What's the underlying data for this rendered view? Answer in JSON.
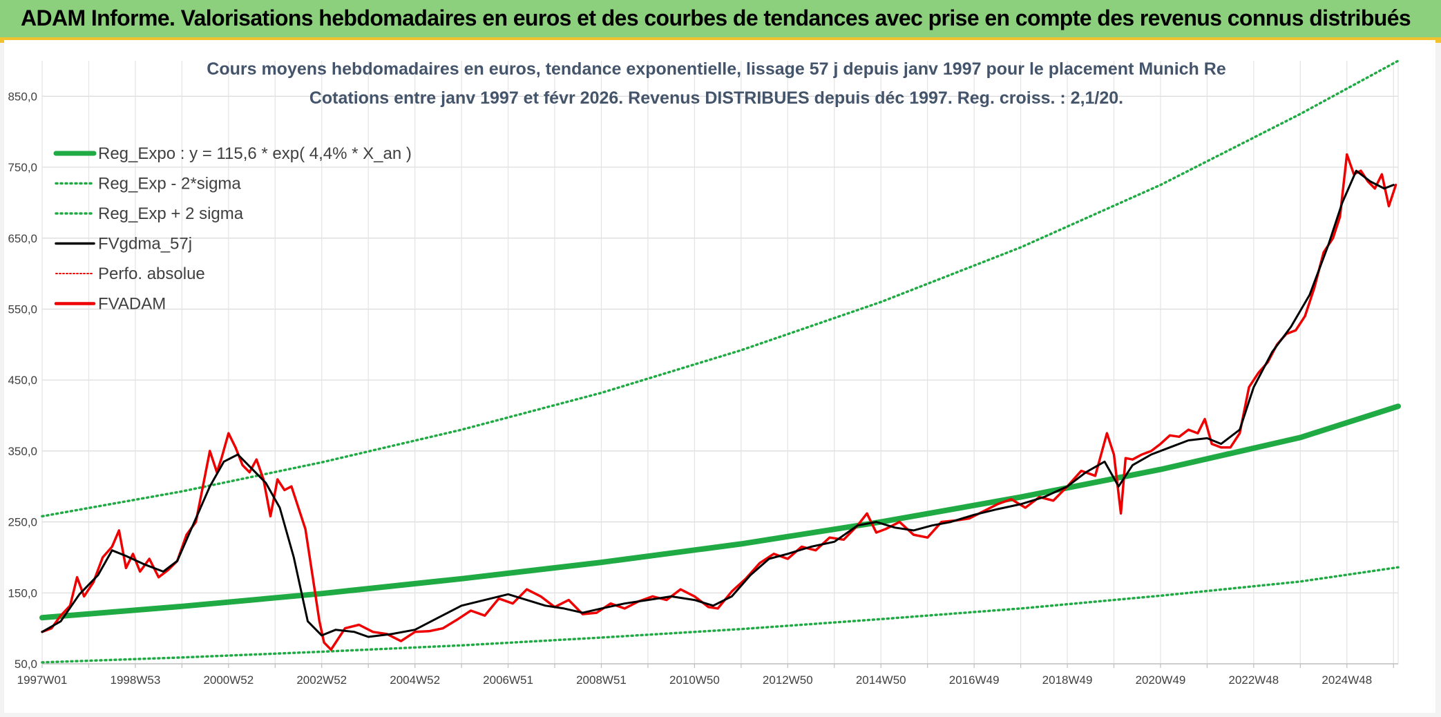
{
  "header": {
    "title": "ADAM Informe. Valorisations hebdomadaires en euros et des courbes de tendances avec prise en compte des revenus connus distribués"
  },
  "colors": {
    "header_bg": "#8ccf7c",
    "accent_yellow": "#f2c12e",
    "trend_green": "#1faa44",
    "smooth_black": "#000000",
    "price_red": "#ee0000"
  },
  "chart_data": {
    "type": "line",
    "title": "Cours moyens hebdomadaires en euros, tendance exponentielle, lissage 57 j depuis janv 1997 pour le placement Munich Re",
    "subtitle": "Cotations entre janv 1997 et févr 2026. Revenus DISTRIBUES depuis déc 1997. Reg. croiss. : 2,1/20.",
    "xlabel": "",
    "ylabel": "",
    "ylim": [
      50,
      900
    ],
    "xlim": [
      1997.0,
      2026.1
    ],
    "y_ticks": [
      "50,0",
      "150,0",
      "250,0",
      "350,0",
      "450,0",
      "550,0",
      "650,0",
      "750,0",
      "850,0"
    ],
    "y_tick_values": [
      50,
      150,
      250,
      350,
      450,
      550,
      650,
      750,
      850
    ],
    "x_ticks": [
      "1997W01",
      "1998W53",
      "2000W52",
      "2002W52",
      "2004W52",
      "2006W51",
      "2008W51",
      "2010W50",
      "2012W50",
      "2014W50",
      "2016W49",
      "2018W49",
      "2020W49",
      "2022W48",
      "2024W48"
    ],
    "x_tick_values": [
      1997.0,
      1999.0,
      2001.0,
      2003.0,
      2005.0,
      2007.0,
      2009.0,
      2011.0,
      2013.0,
      2015.0,
      2017.0,
      2019.0,
      2021.0,
      2023.0,
      2025.0
    ],
    "grid": true,
    "legend_position": "top-left",
    "legend": [
      {
        "label": "Reg_Expo : y = 115,6 * exp( 4,4% *  X_an )",
        "style": "solid-thick",
        "color": "#1faa44"
      },
      {
        "label": "Reg_Exp - 2*sigma",
        "style": "dotted",
        "color": "#1faa44"
      },
      {
        "label": "Reg_Exp + 2 sigma",
        "style": "dotted",
        "color": "#1faa44"
      },
      {
        "label": "FVgdma_57j",
        "style": "solid",
        "color": "#000000"
      },
      {
        "label": "Perfo. absolue",
        "style": "dotted-thin",
        "color": "#ee0000"
      },
      {
        "label": "FVADAM",
        "style": "solid",
        "color": "#ee0000"
      }
    ],
    "series": [
      {
        "name": "Reg_Expo : y = 115,6 * exp( 4,4% *  X_an )",
        "x": [
          1997.0,
          2000.0,
          2003.0,
          2006.0,
          2009.0,
          2012.0,
          2015.0,
          2018.0,
          2021.0,
          2024.0,
          2026.1
        ],
        "values": [
          115,
          131,
          149,
          170,
          193,
          219,
          250,
          285,
          324,
          369,
          413
        ]
      },
      {
        "name": "Reg_Exp - 2*sigma",
        "x": [
          1997.0,
          2000.0,
          2003.0,
          2006.0,
          2009.0,
          2012.0,
          2015.0,
          2018.0,
          2021.0,
          2024.0,
          2026.1
        ],
        "values": [
          52,
          59,
          67,
          76,
          87,
          99,
          113,
          128,
          146,
          166,
          186
        ]
      },
      {
        "name": "Reg_Exp + 2 sigma",
        "x": [
          1997.0,
          2000.0,
          2003.0,
          2006.0,
          2009.0,
          2012.0,
          2015.0,
          2018.0,
          2021.0,
          2024.0,
          2026.1
        ],
        "values": [
          258,
          293,
          334,
          380,
          432,
          492,
          560,
          637,
          725,
          825,
          900
        ]
      },
      {
        "name": "FVgdma_57j",
        "x": [
          1997.0,
          1997.4,
          1997.8,
          1998.2,
          1998.5,
          1998.8,
          1999.2,
          1999.6,
          1999.9,
          2000.3,
          2000.6,
          2000.9,
          2001.2,
          2001.5,
          2001.8,
          2002.1,
          2002.4,
          2002.7,
          2003.0,
          2003.3,
          2003.7,
          2004.0,
          2004.5,
          2005.0,
          2005.5,
          2006.0,
          2006.5,
          2007.0,
          2007.4,
          2007.8,
          2008.2,
          2008.6,
          2009.0,
          2009.5,
          2010.0,
          2010.5,
          2011.0,
          2011.4,
          2011.8,
          2012.2,
          2012.6,
          2013.0,
          2013.5,
          2014.0,
          2014.5,
          2014.9,
          2015.3,
          2015.7,
          2016.1,
          2016.5,
          2017.0,
          2017.5,
          2018.0,
          2018.5,
          2019.0,
          2019.4,
          2019.8,
          2020.1,
          2020.4,
          2020.8,
          2021.2,
          2021.6,
          2022.0,
          2022.3,
          2022.7,
          2023.0,
          2023.4,
          2023.8,
          2024.2,
          2024.6,
          2024.9,
          2025.2,
          2025.5,
          2025.8,
          2026.0
        ],
        "values": [
          95,
          110,
          148,
          175,
          210,
          202,
          190,
          180,
          195,
          255,
          300,
          335,
          345,
          325,
          305,
          270,
          200,
          110,
          90,
          98,
          95,
          88,
          92,
          98,
          115,
          132,
          140,
          148,
          140,
          132,
          128,
          122,
          128,
          135,
          140,
          145,
          140,
          132,
          145,
          175,
          198,
          205,
          215,
          222,
          245,
          250,
          242,
          238,
          245,
          250,
          260,
          268,
          275,
          285,
          300,
          320,
          335,
          300,
          330,
          345,
          355,
          365,
          368,
          360,
          380,
          440,
          490,
          525,
          570,
          640,
          700,
          745,
          730,
          720,
          725
        ]
      },
      {
        "name": "FVADAM",
        "x": [
          1997.0,
          1997.2,
          1997.4,
          1997.6,
          1997.75,
          1997.9,
          1998.1,
          1998.3,
          1998.5,
          1998.65,
          1998.8,
          1998.95,
          1999.1,
          1999.3,
          1999.5,
          1999.7,
          1999.9,
          2000.1,
          2000.3,
          2000.45,
          2000.6,
          2000.75,
          2000.85,
          2001.0,
          2001.15,
          2001.3,
          2001.45,
          2001.6,
          2001.75,
          2001.9,
          2002.05,
          2002.2,
          2002.35,
          2002.5,
          2002.65,
          2002.8,
          2002.95,
          2003.05,
          2003.2,
          2003.5,
          2003.8,
          2004.1,
          2004.4,
          2004.7,
          2005.0,
          2005.3,
          2005.6,
          2005.9,
          2006.2,
          2006.5,
          2006.8,
          2007.1,
          2007.4,
          2007.7,
          2008.0,
          2008.3,
          2008.6,
          2008.9,
          2009.2,
          2009.5,
          2009.8,
          2010.1,
          2010.4,
          2010.7,
          2011.0,
          2011.3,
          2011.5,
          2011.8,
          2012.1,
          2012.4,
          2012.7,
          2013.0,
          2013.3,
          2013.6,
          2013.9,
          2014.2,
          2014.5,
          2014.7,
          2014.9,
          2015.1,
          2015.4,
          2015.7,
          2016.0,
          2016.3,
          2016.6,
          2016.9,
          2017.2,
          2017.5,
          2017.8,
          2018.1,
          2018.4,
          2018.7,
          2019.0,
          2019.3,
          2019.6,
          2019.85,
          2020.0,
          2020.15,
          2020.25,
          2020.4,
          2020.6,
          2020.8,
          2021.0,
          2021.2,
          2021.4,
          2021.6,
          2021.8,
          2021.95,
          2022.1,
          2022.3,
          2022.5,
          2022.7,
          2022.9,
          2023.1,
          2023.3,
          2023.5,
          2023.7,
          2023.9,
          2024.1,
          2024.3,
          2024.5,
          2024.7,
          2024.85,
          2025.0,
          2025.15,
          2025.3,
          2025.45,
          2025.6,
          2025.75,
          2025.9,
          2026.05
        ],
        "values": [
          95,
          100,
          118,
          132,
          172,
          145,
          165,
          200,
          215,
          238,
          185,
          205,
          180,
          198,
          172,
          182,
          195,
          232,
          250,
          300,
          350,
          320,
          340,
          375,
          355,
          330,
          320,
          338,
          310,
          258,
          310,
          295,
          300,
          270,
          240,
          175,
          110,
          80,
          70,
          100,
          105,
          95,
          92,
          82,
          95,
          96,
          100,
          112,
          125,
          118,
          142,
          135,
          155,
          145,
          130,
          140,
          120,
          122,
          135,
          128,
          138,
          145,
          140,
          155,
          145,
          130,
          128,
          152,
          170,
          192,
          205,
          198,
          215,
          210,
          228,
          225,
          245,
          262,
          235,
          240,
          250,
          232,
          228,
          250,
          252,
          255,
          265,
          275,
          282,
          270,
          285,
          280,
          300,
          322,
          315,
          375,
          345,
          262,
          340,
          338,
          345,
          350,
          360,
          372,
          370,
          380,
          375,
          395,
          360,
          355,
          355,
          375,
          440,
          460,
          475,
          500,
          515,
          520,
          540,
          580,
          630,
          650,
          680,
          768,
          740,
          745,
          730,
          720,
          740,
          695,
          725
        ]
      }
    ]
  }
}
